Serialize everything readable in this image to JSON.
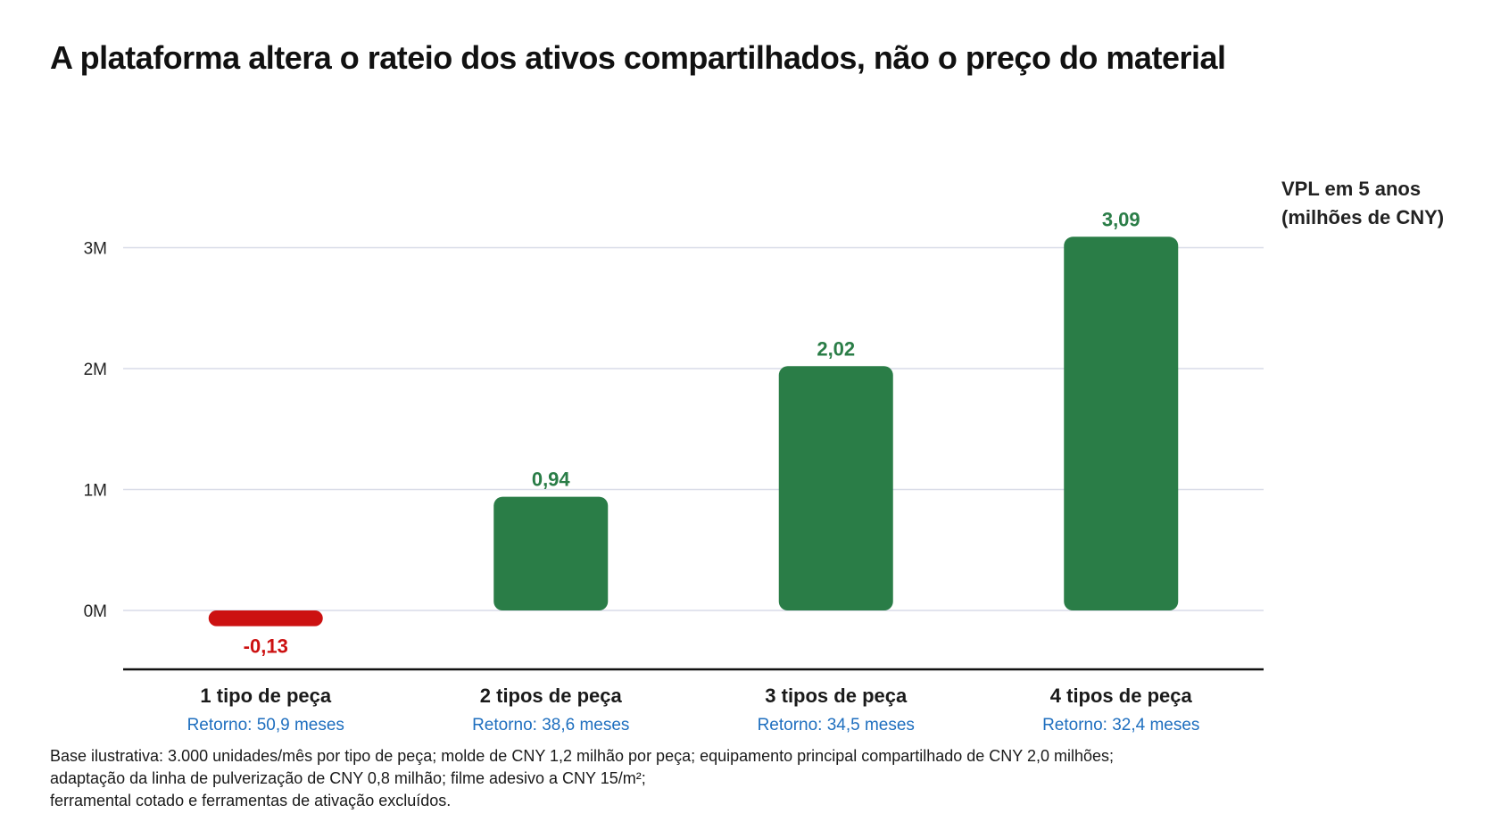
{
  "title": "A plataforma altera o rateio dos ativos compartilhados, não o preço do material",
  "unit_label": {
    "line1": "VPL em 5 anos",
    "line2": "(milhões de CNY)"
  },
  "footnote": {
    "line1": "Base ilustrativa: 3.000 unidades/mês por tipo de peça; molde de CNY 1,2 milhão por peça; equipamento principal compartilhado de CNY 2,0 milhões;",
    "line2": "adaptação da linha de pulverização de CNY 0,8 milhão; filme adesivo a CNY 15/m²;",
    "line3": "ferramental cotado e ferramentas de ativação excluídos."
  },
  "colors": {
    "positive": "#2a7d47",
    "negative": "#cc1111",
    "payback_text": "#1f6fbf",
    "gridline": "#d9dce8",
    "baseline": "#111111"
  },
  "chart_data": {
    "type": "bar",
    "categories": [
      "1 tipo de peça",
      "2 tipos de peça",
      "3 tipos de peça",
      "4 tipos de peça"
    ],
    "values": [
      -0.13,
      0.94,
      2.02,
      3.09
    ],
    "value_labels": [
      "-0,13",
      "0,94",
      "2,02",
      "3,09"
    ],
    "sublabels": [
      "Retorno: 50,9 meses",
      "Retorno: 38,6 meses",
      "Retorno: 34,5 meses",
      "Retorno: 32,4 meses"
    ],
    "payback_months": [
      50.9,
      38.6,
      34.5,
      32.4
    ],
    "ylabel": "VPL em 5 anos (milhões de CNY)",
    "y_ticks": [
      0,
      1,
      2,
      3
    ],
    "y_tick_labels": [
      "0M",
      "1M",
      "2M",
      "3M"
    ],
    "ylim": [
      -0.5,
      3.2
    ],
    "grid": true,
    "legend": "none"
  }
}
